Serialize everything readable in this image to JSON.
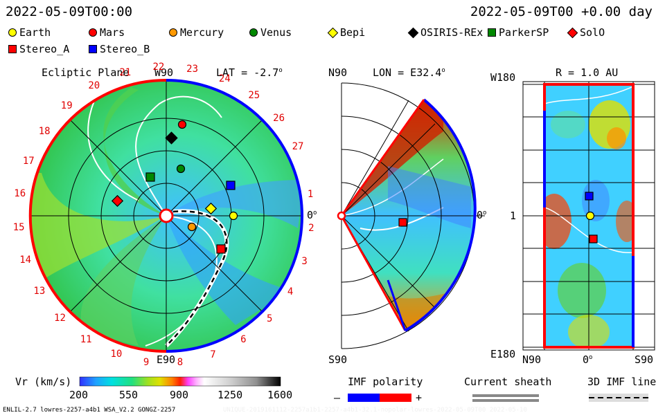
{
  "header": {
    "left_time": "2022-05-09T00:00",
    "right_time": "2022-05-09T00 +0.00 day"
  },
  "legend": [
    {
      "name": "earth",
      "label": "Earth",
      "shape": "circle",
      "color": "#ffff00"
    },
    {
      "name": "mars",
      "label": "Mars",
      "shape": "circle",
      "color": "#ff0000"
    },
    {
      "name": "mercury",
      "label": "Mercury",
      "shape": "circle",
      "color": "#ff9900"
    },
    {
      "name": "venus",
      "label": "Venus",
      "shape": "circle",
      "color": "#008800"
    },
    {
      "name": "bepi",
      "label": "Bepi",
      "shape": "diamond",
      "color": "#ffff00"
    },
    {
      "name": "osiris",
      "label": "OSIRIS-REx",
      "shape": "diamond",
      "color": "#000000"
    },
    {
      "name": "parker",
      "label": "ParkerSP",
      "shape": "square",
      "color": "#008800"
    },
    {
      "name": "solo",
      "label": "SolO",
      "shape": "diamond",
      "color": "#ff0000"
    },
    {
      "name": "stereo-a",
      "label": "Stereo_A",
      "shape": "square",
      "color": "#ff0000"
    },
    {
      "name": "stereo-b",
      "label": "Stereo_B",
      "shape": "square",
      "color": "#0000ff"
    }
  ],
  "panel_ecliptic": {
    "title": "Ecliptic Plane",
    "top_label": "W90",
    "lat_label": "LAT = -2.7",
    "bottom_label": "E90",
    "right_label": "0",
    "carrington_numbers": [
      "1",
      "2",
      "3",
      "4",
      "5",
      "6",
      "7",
      "8",
      "9",
      "10",
      "11",
      "12",
      "13",
      "14",
      "15",
      "16",
      "17",
      "18",
      "19",
      "20",
      "21",
      "22",
      "23",
      "24",
      "25",
      "26",
      "27"
    ]
  },
  "panel_meridional": {
    "top_left": "N90",
    "lon_label": "LON = E32.4",
    "right_label": "0",
    "bottom_left": "S90"
  },
  "panel_rmap": {
    "title": "R = 1.0 AU",
    "top_left": "W180",
    "left_mid": "1",
    "bottom_left": "E180",
    "x_left": "N90",
    "x_mid": "0",
    "x_right": "S90"
  },
  "colorbar": {
    "label": "Vr (km/s)",
    "ticks": [
      "200",
      "550",
      "900",
      "1250",
      "1600"
    ],
    "colors": [
      "#2020ff",
      "#00a0ff",
      "#00e0e0",
      "#00e080",
      "#80e020",
      "#e0e000",
      "#ff8000",
      "#ff0000",
      "#ff40ff",
      "#ffa0ff",
      "#ffffff",
      "#d0d0d0",
      "#a0a0a0",
      "#505050",
      "#000000"
    ]
  },
  "imf_polarity": {
    "label": "IMF polarity",
    "minus": "–",
    "plus": "+",
    "neg_color": "#0000ff",
    "pos_color": "#ff0000"
  },
  "current_sheath": {
    "label": "Current sheath"
  },
  "imf_line": {
    "label": "3D IMF line"
  },
  "footer": {
    "left": "ENLIL-2.7 lowres-2257-a4b1 WSA_V2.2 GONGZ-2257",
    "right": "UNIQUE-2019161112-2257a1b1-2257-a4b1-32.1-nopolar-lowres-2022-05-09T00   2022-05-10"
  }
}
